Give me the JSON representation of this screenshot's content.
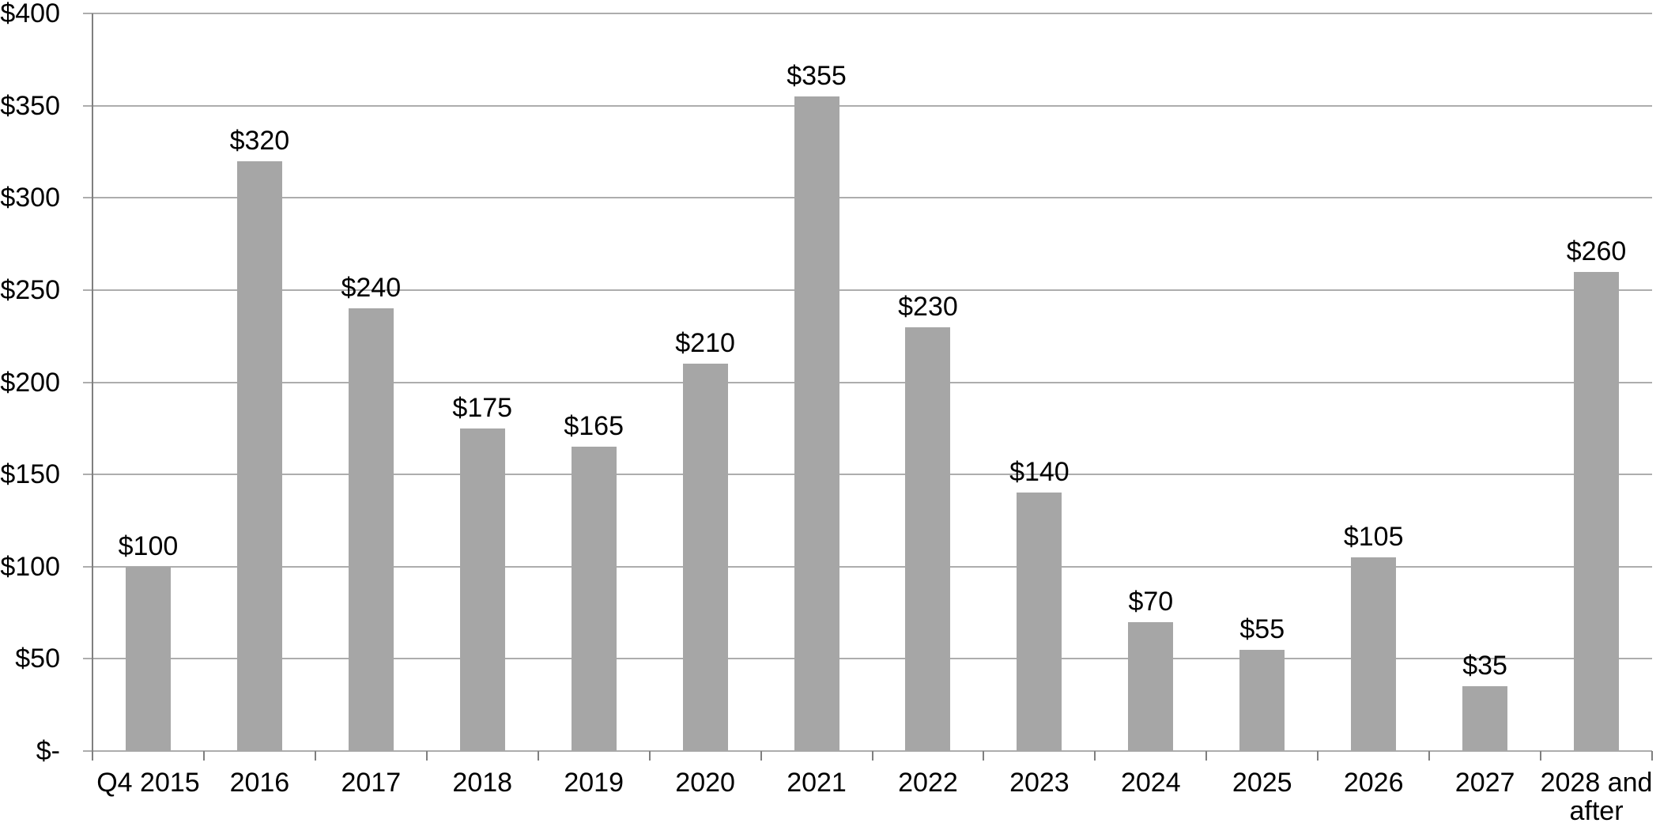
{
  "chart_data": {
    "type": "bar",
    "title": "",
    "xlabel": "",
    "ylabel": "",
    "categories": [
      "Q4 2015",
      "2016",
      "2017",
      "2018",
      "2019",
      "2020",
      "2021",
      "2022",
      "2023",
      "2024",
      "2025",
      "2026",
      "2027",
      "2028 and\nafter"
    ],
    "values": [
      100,
      320,
      240,
      175,
      165,
      210,
      355,
      230,
      140,
      70,
      55,
      105,
      35,
      260
    ],
    "data_labels": [
      "$100",
      "$320",
      "$240",
      "$175",
      "$165",
      "$210",
      "$355",
      "$230",
      "$140",
      "$70",
      "$55",
      "$105",
      "$35",
      "$260"
    ],
    "ylim": [
      0,
      400
    ],
    "ytick_values": [
      0,
      50,
      100,
      150,
      200,
      250,
      300,
      350,
      400
    ],
    "ytick_labels": [
      "$-",
      "$50",
      "$100",
      "$150",
      "$200",
      "$250",
      "$300",
      "$350",
      "$400"
    ],
    "grid": true,
    "legend": false,
    "colors": {
      "bar": "#a6a6a6",
      "gridline": "#adadad",
      "axis": "#7f7f7f",
      "text": "#000000",
      "background": "#ffffff"
    }
  }
}
